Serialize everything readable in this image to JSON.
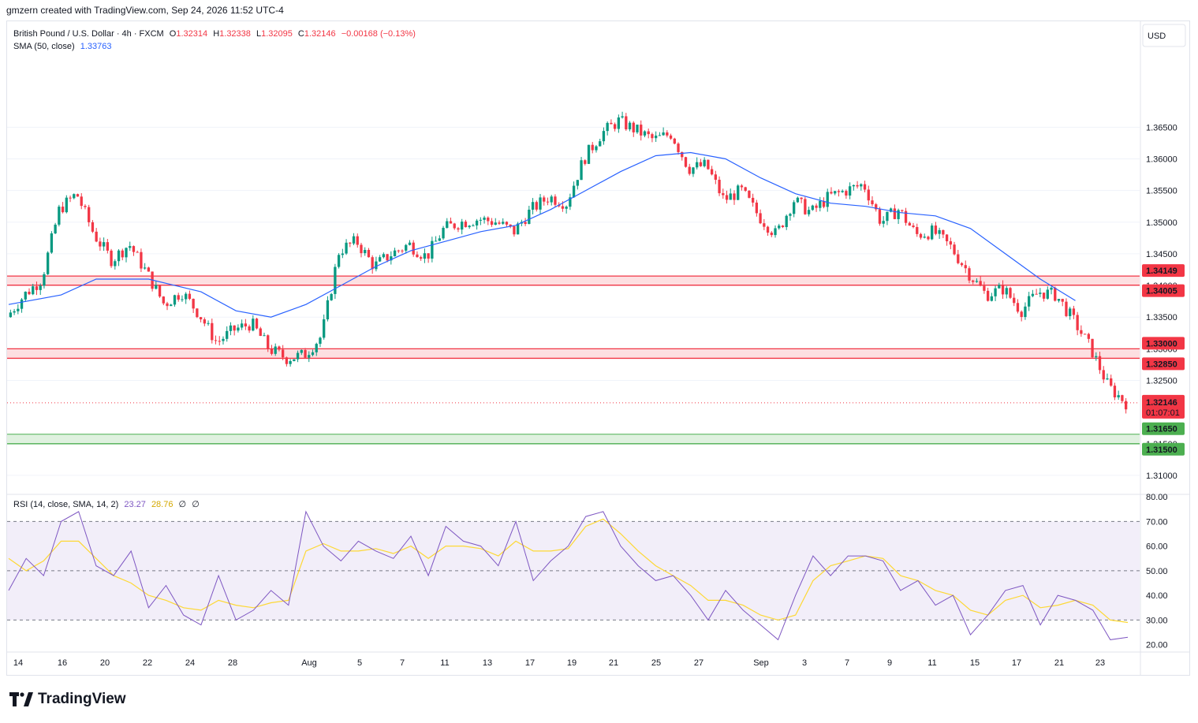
{
  "header": {
    "attribution": "gmzern created with TradingView.com, Sep 24, 2026 11:52 UTC-4"
  },
  "legend": {
    "symbol": "British Pound / U.S. Dollar · 4h · FXCM",
    "open_label": "O",
    "open": "1.32314",
    "high_label": "H",
    "high": "1.32338",
    "low_label": "L",
    "low": "1.32095",
    "close_label": "C",
    "close": "1.32146",
    "change": "−0.00168 (−0.13%)",
    "sma_label": "SMA (50, close)",
    "sma_value": "1.33763",
    "rsi_label": "RSI (14, close, SMA, 14, 2)",
    "rsi_value": "23.27",
    "rsi_sma_value": "28.76",
    "rsi_extra1": "∅",
    "rsi_extra2": "∅"
  },
  "currency": "USD",
  "footer": {
    "brand": "TradingView"
  },
  "colors": {
    "up": "#089981",
    "down": "#f23645",
    "sma": "#2962ff",
    "rsi": "#7e57c2",
    "rsi_sma": "#fdd835",
    "resistance": "#f23645",
    "support": "#4caf50"
  },
  "chart_data": [
    {
      "type": "candlestick",
      "title": "British Pound / U.S. Dollar · 4h · FXCM",
      "ylim": [
        1.307,
        1.378
      ],
      "y_ticks": [
        "1.36500",
        "1.36000",
        "1.35500",
        "1.35000",
        "1.34500",
        "1.34000",
        "1.33500",
        "1.33000",
        "1.32500",
        "1.31500",
        "1.31000"
      ],
      "y_tick_values": [
        1.365,
        1.36,
        1.355,
        1.35,
        1.345,
        1.34,
        1.335,
        1.33,
        1.325,
        1.315,
        1.31
      ],
      "x_ticks": [
        "14",
        "16",
        "20",
        "22",
        "24",
        "28",
        "Aug",
        "5",
        "7",
        "11",
        "13",
        "17",
        "19",
        "21",
        "25",
        "27",
        "Sep",
        "3",
        "7",
        "9",
        "11",
        "15",
        "17",
        "21",
        "23"
      ],
      "zones": [
        {
          "name": "resistance-upper",
          "from": 1.34005,
          "to": 1.34149,
          "labels": [
            "1.34149",
            "1.34005"
          ]
        },
        {
          "name": "resistance-lower",
          "from": 1.3285,
          "to": 1.33,
          "labels": [
            "1.33000",
            "1.32850"
          ]
        },
        {
          "name": "support",
          "from": 1.315,
          "to": 1.3165,
          "labels": [
            "1.31650",
            "1.31500"
          ]
        }
      ],
      "last_price": {
        "value": 1.32146,
        "label": "1.32146",
        "countdown": "01:07:01"
      },
      "close_path": [
        [
          0,
          1.335
        ],
        [
          1,
          1.3385
        ],
        [
          2,
          1.341
        ],
        [
          3,
          1.352
        ],
        [
          4,
          1.3545
        ],
        [
          5,
          1.348
        ],
        [
          6,
          1.344
        ],
        [
          7,
          1.3465
        ],
        [
          8,
          1.342
        ],
        [
          9,
          1.337
        ],
        [
          10,
          1.339
        ],
        [
          11,
          1.3355
        ],
        [
          12,
          1.331
        ],
        [
          13,
          1.333
        ],
        [
          14,
          1.334
        ],
        [
          15,
          1.33
        ],
        [
          16,
          1.3285
        ],
        [
          17,
          1.329
        ],
        [
          18,
          1.332
        ],
        [
          19,
          1.3455
        ],
        [
          20,
          1.347
        ],
        [
          21,
          1.343
        ],
        [
          22,
          1.345
        ],
        [
          23,
          1.3465
        ],
        [
          24,
          1.3445
        ],
        [
          25,
          1.349
        ],
        [
          26,
          1.35
        ],
        [
          27,
          1.3505
        ],
        [
          28,
          1.35
        ],
        [
          29,
          1.3485
        ],
        [
          30,
          1.352
        ],
        [
          31,
          1.354
        ],
        [
          32,
          1.353
        ],
        [
          33,
          1.36
        ],
        [
          34,
          1.364
        ],
        [
          35,
          1.366
        ],
        [
          36,
          1.3645
        ],
        [
          37,
          1.363
        ],
        [
          38,
          1.364
        ],
        [
          39,
          1.3585
        ],
        [
          40,
          1.359
        ],
        [
          41,
          1.3535
        ],
        [
          42,
          1.355
        ],
        [
          43,
          1.351
        ],
        [
          44,
          1.348
        ],
        [
          45,
          1.3535
        ],
        [
          46,
          1.3515
        ],
        [
          47,
          1.354
        ],
        [
          48,
          1.355
        ],
        [
          49,
          1.356
        ],
        [
          50,
          1.35
        ],
        [
          51,
          1.352
        ],
        [
          52,
          1.348
        ],
        [
          53,
          1.3485
        ],
        [
          54,
          1.346
        ],
        [
          55,
          1.342
        ],
        [
          56,
          1.3385
        ],
        [
          57,
          1.3395
        ],
        [
          58,
          1.336
        ],
        [
          59,
          1.339
        ],
        [
          60,
          1.3385
        ],
        [
          61,
          1.3345
        ],
        [
          62,
          1.33
        ],
        [
          63,
          1.324
        ],
        [
          64,
          1.3215
        ]
      ],
      "sma_path": [
        [
          0,
          1.337
        ],
        [
          3,
          1.3385
        ],
        [
          5,
          1.341
        ],
        [
          8,
          1.341
        ],
        [
          11,
          1.339
        ],
        [
          13,
          1.336
        ],
        [
          15,
          1.335
        ],
        [
          17,
          1.337
        ],
        [
          19,
          1.34
        ],
        [
          21,
          1.343
        ],
        [
          23,
          1.3455
        ],
        [
          25,
          1.347
        ],
        [
          27,
          1.3485
        ],
        [
          29,
          1.3495
        ],
        [
          31,
          1.352
        ],
        [
          33,
          1.355
        ],
        [
          35,
          1.358
        ],
        [
          37,
          1.3605
        ],
        [
          39,
          1.361
        ],
        [
          41,
          1.36
        ],
        [
          43,
          1.357
        ],
        [
          45,
          1.3545
        ],
        [
          47,
          1.353
        ],
        [
          49,
          1.3525
        ],
        [
          51,
          1.3515
        ],
        [
          53,
          1.351
        ],
        [
          55,
          1.349
        ],
        [
          57,
          1.345
        ],
        [
          59,
          1.341
        ],
        [
          61,
          1.3376
        ]
      ]
    },
    {
      "type": "line",
      "title": "RSI (14, close, SMA, 14, 2)",
      "ylim": [
        17,
        81
      ],
      "y_ticks": [
        "80.00",
        "70.00",
        "60.00",
        "50.00",
        "40.00",
        "30.00",
        "20.00"
      ],
      "y_tick_values": [
        80,
        70,
        60,
        50,
        40,
        30,
        20
      ],
      "bands": {
        "upper": 70,
        "middle": 50,
        "lower": 30
      },
      "series": [
        {
          "name": "RSI",
          "values": [
            42,
            55,
            48,
            70,
            74,
            52,
            48,
            58,
            35,
            44,
            32,
            28,
            48,
            30,
            34,
            42,
            36,
            74,
            60,
            54,
            62,
            58,
            55,
            64,
            48,
            68,
            62,
            60,
            52,
            70,
            46,
            54,
            60,
            72,
            74,
            60,
            52,
            46,
            48,
            40,
            30,
            42,
            34,
            28,
            22,
            40,
            56,
            48,
            56,
            56,
            54,
            42,
            46,
            36,
            40,
            24,
            32,
            42,
            44,
            28,
            40,
            38,
            34,
            22,
            23
          ]
        },
        {
          "name": "SMA",
          "values": [
            55,
            50,
            54,
            62,
            62,
            55,
            48,
            45,
            40,
            38,
            35,
            34,
            38,
            36,
            35,
            37,
            38,
            58,
            61,
            58,
            58,
            59,
            57,
            60,
            55,
            60,
            60,
            59,
            56,
            62,
            58,
            58,
            59,
            68,
            71,
            65,
            58,
            52,
            48,
            44,
            38,
            38,
            36,
            32,
            30,
            32,
            46,
            52,
            54,
            56,
            55,
            48,
            46,
            42,
            40,
            34,
            32,
            38,
            40,
            35,
            36,
            38,
            36,
            30,
            29
          ]
        }
      ]
    }
  ]
}
